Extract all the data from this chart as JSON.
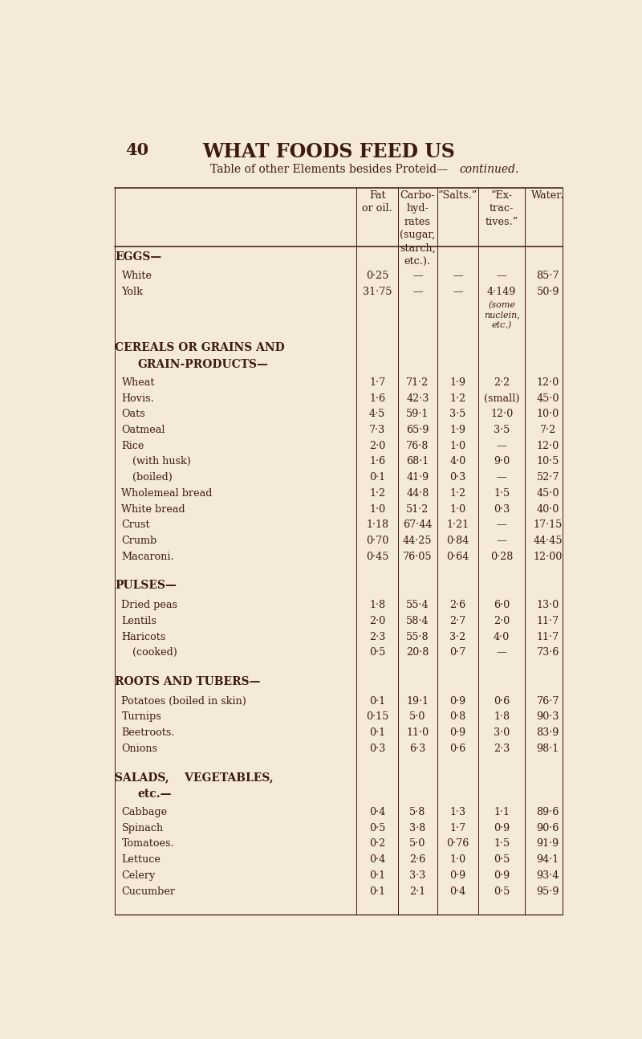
{
  "page_number": "40",
  "page_title": "WHAT FOODS FEED US",
  "bg_color": "#f5ead8",
  "text_color": "#3d1a0e",
  "col_headers": [
    "Fat\nor oil.",
    "Carbo-\nhyd-\nrates\n(sugar,\nstarch,\netc.).",
    "“Salts.”",
    "“Ex-\ntrac-\ntives.”",
    "Water."
  ],
  "sections": [
    {
      "header": "EGGS—",
      "header2": null,
      "rows": [
        {
          "name": "White",
          "dots": true,
          "indent": 1,
          "fat": "0·25",
          "carbo": "—",
          "salts": "—",
          "ext": "—",
          "water": "85·7",
          "ext_extra": null
        },
        {
          "name": "Yolk",
          "dots": true,
          "indent": 1,
          "fat": "31·75",
          "carbo": "—",
          "salts": "—",
          "ext": "4·149",
          "water": "50·9",
          "ext_extra": "(some\nnuclein,\netc.)"
        }
      ]
    },
    {
      "header": "CEREALS OR GRAINS AND",
      "header2": "GRAIN-PRODUCTS—",
      "rows": [
        {
          "name": "Wheat",
          "dots": true,
          "indent": 1,
          "fat": "1·7",
          "carbo": "71·2",
          "salts": "1·9",
          "ext": "2·2",
          "water": "12·0",
          "ext_extra": null
        },
        {
          "name": "Hovis.",
          "dots": true,
          "indent": 1,
          "fat": "1·6",
          "carbo": "42·3",
          "salts": "1·2",
          "ext": "(small)",
          "water": "45·0",
          "ext_extra": null
        },
        {
          "name": "Oats",
          "dots": true,
          "indent": 1,
          "fat": "4·5",
          "carbo": "59·1",
          "salts": "3·5",
          "ext": "12·0",
          "water": "10·0",
          "ext_extra": null
        },
        {
          "name": "Oatmeal",
          "dots": true,
          "indent": 1,
          "fat": "7·3",
          "carbo": "65·9",
          "salts": "1·9",
          "ext": "3·5",
          "water": "7·2",
          "ext_extra": null
        },
        {
          "name": "Rice",
          "dots": true,
          "indent": 1,
          "fat": "2·0",
          "carbo": "76·8",
          "salts": "1·0",
          "ext": "—",
          "water": "12·0",
          "ext_extra": null
        },
        {
          "name": "(with husk)",
          "dots": true,
          "indent": 2,
          "fat": "1·6",
          "carbo": "68·1",
          "salts": "4·0",
          "ext": "9·0",
          "water": "10·5",
          "ext_extra": null
        },
        {
          "name": "(boiled)",
          "dots": true,
          "indent": 2,
          "fat": "0·1",
          "carbo": "41·9",
          "salts": "0·3",
          "ext": "—",
          "water": "52·7",
          "ext_extra": null
        },
        {
          "name": "Wholemeal bread",
          "dots": true,
          "indent": 1,
          "fat": "1·2",
          "carbo": "44·8",
          "salts": "1·2",
          "ext": "1·5",
          "water": "45·0",
          "ext_extra": null
        },
        {
          "name": "White bread",
          "dots": true,
          "indent": 1,
          "fat": "1·0",
          "carbo": "51·2",
          "salts": "1·0",
          "ext": "0·3",
          "water": "40·0",
          "ext_extra": null
        },
        {
          "name": "Crust",
          "dots": true,
          "indent": 1,
          "fat": "1·18",
          "carbo": "67·44",
          "salts": "1·21",
          "ext": "—",
          "water": "17·15",
          "ext_extra": null
        },
        {
          "name": "Crumb",
          "dots": true,
          "indent": 1,
          "fat": "0·70",
          "carbo": "44·25",
          "salts": "0·84",
          "ext": "—",
          "water": "44·45",
          "ext_extra": null
        },
        {
          "name": "Macaroni.",
          "dots": true,
          "indent": 1,
          "fat": "0·45",
          "carbo": "76·05",
          "salts": "0·64",
          "ext": "0·28",
          "water": "12·00",
          "ext_extra": null
        }
      ]
    },
    {
      "header": "PULSES—",
      "header2": null,
      "rows": [
        {
          "name": "Dried peas",
          "dots": true,
          "indent": 1,
          "fat": "1·8",
          "carbo": "55·4",
          "salts": "2·6",
          "ext": "6·0",
          "water": "13·0",
          "ext_extra": null
        },
        {
          "name": "Lentils",
          "dots": true,
          "indent": 1,
          "fat": "2·0",
          "carbo": "58·4",
          "salts": "2·7",
          "ext": "2·0",
          "water": "11·7",
          "ext_extra": null
        },
        {
          "name": "Haricots",
          "dots": true,
          "indent": 1,
          "fat": "2·3",
          "carbo": "55·8",
          "salts": "3·2",
          "ext": "4·0",
          "water": "11·7",
          "ext_extra": null
        },
        {
          "name": "(cooked)",
          "dots": true,
          "indent": 2,
          "fat": "0·5",
          "carbo": "20·8",
          "salts": "0·7",
          "ext": "—",
          "water": "73·6",
          "ext_extra": null
        }
      ]
    },
    {
      "header": "ROOTS AND TUBERS—",
      "header2": null,
      "rows": [
        {
          "name": "Potatoes (boiled in skin)",
          "dots": true,
          "indent": 1,
          "fat": "0·1",
          "carbo": "19·1",
          "salts": "0·9",
          "ext": "0·6",
          "water": "76·7",
          "ext_extra": null
        },
        {
          "name": "Turnips",
          "dots": true,
          "indent": 1,
          "fat": "0·15",
          "carbo": "5·0",
          "salts": "0·8",
          "ext": "1·8",
          "water": "90·3",
          "ext_extra": null
        },
        {
          "name": "Beetroots.",
          "dots": true,
          "indent": 1,
          "fat": "0·1",
          "carbo": "11·0",
          "salts": "0·9",
          "ext": "3·0",
          "water": "83·9",
          "ext_extra": null
        },
        {
          "name": "Onions",
          "dots": true,
          "indent": 1,
          "fat": "0·3",
          "carbo": "6·3",
          "salts": "0·6",
          "ext": "2·3",
          "water": "98·1",
          "ext_extra": null
        }
      ]
    },
    {
      "header": "SALADS,    VEGETABLES,",
      "header2": "etc.—",
      "rows": [
        {
          "name": "Cabbage",
          "dots": true,
          "indent": 1,
          "fat": "0·4",
          "carbo": "5·8",
          "salts": "1·3",
          "ext": "1·1",
          "water": "89·6",
          "ext_extra": null
        },
        {
          "name": "Spinach",
          "dots": true,
          "indent": 1,
          "fat": "0·5",
          "carbo": "3·8",
          "salts": "1·7",
          "ext": "0·9",
          "water": "90·6",
          "ext_extra": null
        },
        {
          "name": "Tomatoes.",
          "dots": true,
          "indent": 1,
          "fat": "0·2",
          "carbo": "5·0",
          "salts": "0·76",
          "ext": "1·5",
          "water": "91·9",
          "ext_extra": null
        },
        {
          "name": "Lettuce",
          "dots": true,
          "indent": 1,
          "fat": "0·4",
          "carbo": "2·6",
          "salts": "1·0",
          "ext": "0·5",
          "water": "94·1",
          "ext_extra": null
        },
        {
          "name": "Celery",
          "dots": true,
          "indent": 1,
          "fat": "0·1",
          "carbo": "3·3",
          "salts": "0·9",
          "ext": "0·9",
          "water": "93·4",
          "ext_extra": null
        },
        {
          "name": "Cucumber",
          "dots": true,
          "indent": 1,
          "fat": "0·1",
          "carbo": "2·1",
          "salts": "0·4",
          "ext": "0·5",
          "water": "95·9",
          "ext_extra": null
        }
      ]
    }
  ]
}
